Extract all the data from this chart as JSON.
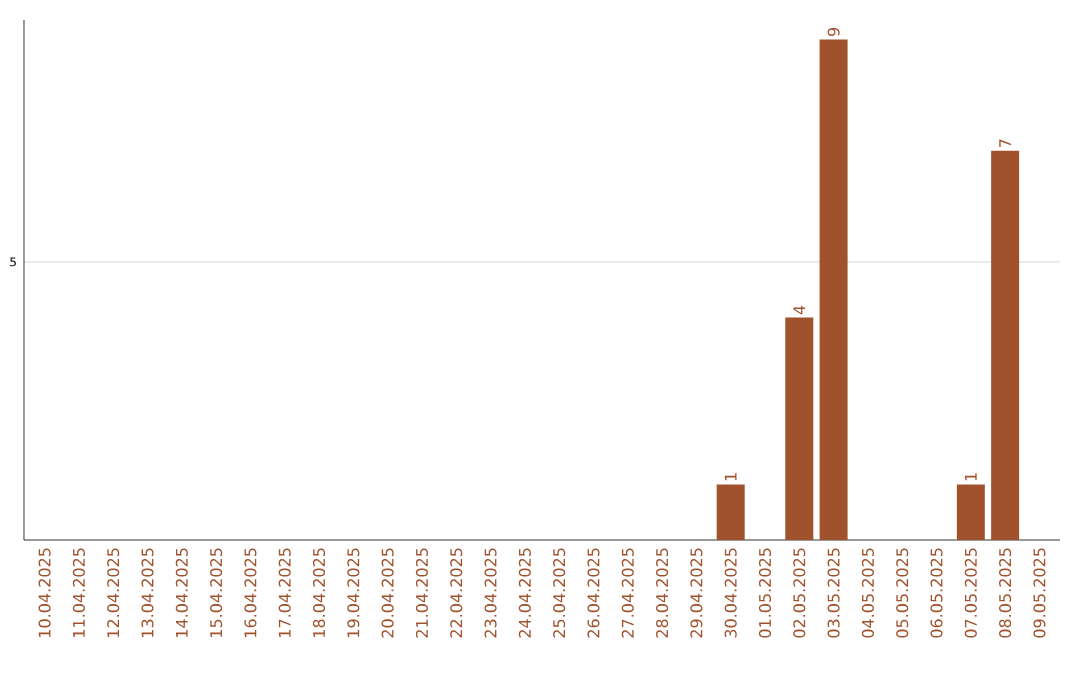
{
  "chart_data": {
    "type": "bar",
    "categories": [
      "10.04.2025",
      "11.04.2025",
      "12.04.2025",
      "13.04.2025",
      "14.04.2025",
      "15.04.2025",
      "16.04.2025",
      "17.04.2025",
      "18.04.2025",
      "19.04.2025",
      "20.04.2025",
      "21.04.2025",
      "22.04.2025",
      "23.04.2025",
      "24.04.2025",
      "25.04.2025",
      "26.04.2025",
      "27.04.2025",
      "28.04.2025",
      "29.04.2025",
      "30.04.2025",
      "01.05.2025",
      "02.05.2025",
      "03.05.2025",
      "04.05.2025",
      "05.05.2025",
      "06.05.2025",
      "07.05.2025",
      "08.05.2025",
      "09.05.2025"
    ],
    "values": [
      null,
      null,
      null,
      null,
      null,
      null,
      null,
      null,
      null,
      null,
      null,
      null,
      null,
      null,
      null,
      null,
      null,
      null,
      null,
      null,
      1,
      null,
      4,
      9,
      null,
      null,
      null,
      1,
      7,
      null
    ],
    "value_labels": [
      null,
      null,
      null,
      null,
      null,
      null,
      null,
      null,
      null,
      null,
      null,
      null,
      null,
      null,
      null,
      null,
      null,
      null,
      null,
      null,
      "1",
      null,
      "4",
      "9",
      null,
      null,
      null,
      "1",
      "7",
      null
    ],
    "color": "#a0522d",
    "ylim": [
      0,
      9.35
    ],
    "yticks": [
      5
    ],
    "grid": "y"
  }
}
